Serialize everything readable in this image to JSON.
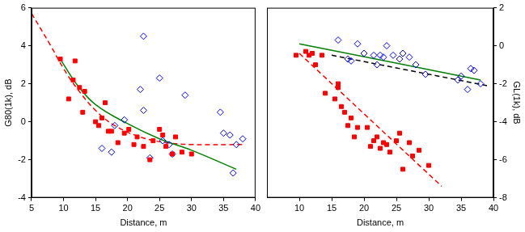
{
  "chart_data": [
    {
      "type": "scatter",
      "x_label": "Distance, m",
      "y_label": "G80(1k), dB",
      "xlim": [
        5,
        40
      ],
      "xticks": [
        5,
        10,
        15,
        20,
        25,
        30,
        35,
        40
      ],
      "ylim": [
        -4,
        6
      ],
      "yticks": [
        -4,
        -2,
        0,
        2,
        4,
        6
      ],
      "grid": false,
      "series": [
        {
          "type": "scatter",
          "marker": "square",
          "color": "#ff0000",
          "x": [
            9.5,
            10.8,
            11.5,
            11.8,
            12.5,
            13.3,
            13.0,
            15.0,
            15.5,
            16.0,
            16.5,
            17.0,
            17.5,
            18.5,
            19.5,
            20.2,
            21.0,
            21.5,
            22.5,
            23.5,
            24.0,
            25.0,
            25.5,
            26.0,
            27.0,
            27.5,
            28.5,
            30.0
          ],
          "values": [
            3.3,
            1.2,
            2.2,
            3.2,
            1.8,
            1.6,
            0.5,
            0.0,
            -0.2,
            0.2,
            1.0,
            -0.5,
            -0.5,
            -1.1,
            -0.6,
            -0.4,
            -1.2,
            -0.8,
            -1.3,
            -2.0,
            -1.0,
            -0.4,
            -0.7,
            -1.3,
            -1.7,
            -0.8,
            -1.6,
            -1.7
          ]
        },
        {
          "type": "scatter",
          "marker": "open-diamond",
          "color": "#0000ff",
          "x": [
            16.0,
            17.5,
            18.0,
            19.5,
            22.0,
            22.5,
            22.5,
            23.5,
            25.0,
            25.5,
            26.5,
            27.0,
            29.0,
            34.5,
            35.0,
            36.0,
            36.5,
            37.0,
            38.0
          ],
          "values": [
            -1.4,
            -1.6,
            -0.2,
            0.1,
            1.7,
            4.5,
            0.6,
            -1.9,
            2.3,
            -1.0,
            -1.2,
            -1.7,
            1.4,
            0.5,
            -0.6,
            -0.7,
            -2.7,
            -1.2,
            -0.9
          ]
        },
        {
          "type": "line",
          "line_style": "solid",
          "color": "#008000",
          "x": [
            9.5,
            12,
            15,
            20,
            25,
            30,
            37
          ],
          "values": [
            3.3,
            2.0,
            0.9,
            -0.1,
            -0.9,
            -1.5,
            -2.5
          ]
        },
        {
          "type": "line",
          "line_style": "dashed",
          "color": "#ff0000",
          "x": [
            5,
            8,
            10,
            12,
            15,
            18,
            22,
            26,
            30,
            38
          ],
          "values": [
            5.7,
            4.0,
            2.8,
            1.8,
            0.6,
            -0.2,
            -0.8,
            -1.1,
            -1.2,
            -1.2
          ]
        }
      ]
    },
    {
      "type": "scatter",
      "x_label": "Distance, m",
      "y2_label": "GL(1k), dB",
      "xlim": [
        5,
        40
      ],
      "xticks": [
        10,
        15,
        20,
        25,
        30,
        35,
        40
      ],
      "y2lim": [
        -8,
        2
      ],
      "y2ticks": [
        -8,
        -6,
        -4,
        -2,
        0,
        2
      ],
      "grid": false,
      "series": [
        {
          "type": "scatter",
          "axis": "y2",
          "marker": "square",
          "color": "#ff0000",
          "x": [
            9.5,
            11.0,
            11.5,
            12.0,
            12.5,
            13.5,
            14.0,
            15.5,
            16.0,
            16.0,
            16.5,
            17.0,
            17.5,
            18.0,
            18.5,
            19.0,
            20.5,
            21.0,
            21.5,
            22.0,
            22.5,
            23.0,
            23.5,
            24.0,
            25.0,
            25.5,
            26.0,
            27.0,
            27.5,
            28.5,
            30.0
          ],
          "values": [
            -0.5,
            -0.3,
            -0.5,
            -0.4,
            -1.0,
            -0.5,
            -2.5,
            -2.8,
            -2.0,
            -2.2,
            -3.2,
            -3.5,
            -4.2,
            -3.8,
            -4.8,
            -4.3,
            -4.3,
            -5.3,
            -5.0,
            -4.8,
            -5.4,
            -5.1,
            -5.2,
            -5.6,
            -5.0,
            -4.6,
            -6.5,
            -5.1,
            -5.8,
            -5.5,
            -6.3
          ]
        },
        {
          "type": "scatter",
          "axis": "y2",
          "marker": "open-diamond",
          "color": "#0000ff",
          "x": [
            16.0,
            17.5,
            18.0,
            19.0,
            20.0,
            21.5,
            22.0,
            22.5,
            23.0,
            23.5,
            24.5,
            25.5,
            26.0,
            27.0,
            28.0,
            29.5,
            34.5,
            35.0,
            36.0,
            36.5,
            37.0,
            38.0
          ],
          "values": [
            0.3,
            -0.7,
            -0.8,
            0.1,
            -0.4,
            -0.5,
            -1.0,
            -0.5,
            -0.6,
            0.0,
            -0.5,
            -0.7,
            -0.4,
            -0.6,
            -1.0,
            -1.5,
            -1.8,
            -1.6,
            -2.3,
            -1.2,
            -1.3,
            -2.0
          ]
        },
        {
          "type": "line",
          "axis": "y2",
          "line_style": "solid",
          "color": "#008000",
          "x": [
            10,
            38
          ],
          "values": [
            0.1,
            -1.8
          ]
        },
        {
          "type": "line",
          "axis": "y2",
          "line_style": "dashed",
          "color": "#000000",
          "x": [
            15,
            39
          ],
          "values": [
            -0.5,
            -2.1
          ]
        },
        {
          "type": "line",
          "axis": "y2",
          "line_style": "dashed",
          "color": "#ff0000",
          "x": [
            10,
            32
          ],
          "values": [
            -0.4,
            -7.4
          ]
        }
      ]
    }
  ]
}
